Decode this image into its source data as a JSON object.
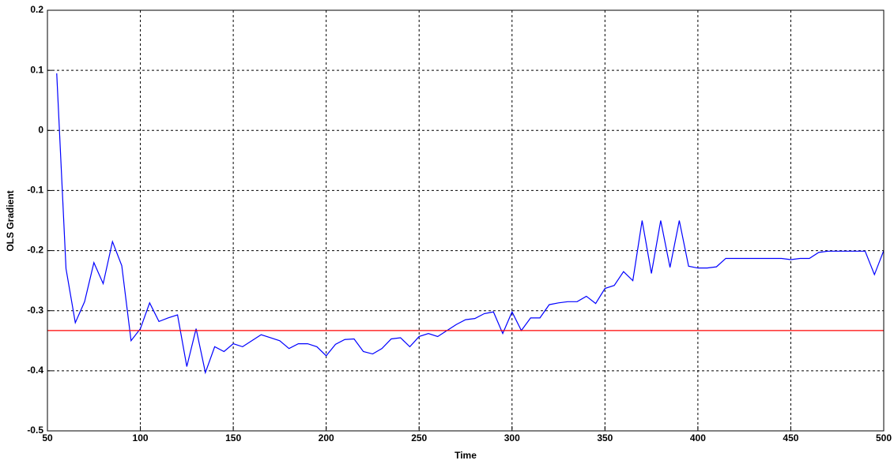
{
  "chart_data": {
    "type": "line",
    "xlabel": "Time",
    "ylabel": "OLS Gradient",
    "xlim": [
      50,
      500
    ],
    "ylim": [
      -0.5,
      0.2
    ],
    "xticks": [
      50,
      100,
      150,
      200,
      250,
      300,
      350,
      400,
      450,
      500
    ],
    "yticks": [
      -0.5,
      -0.4,
      -0.3,
      -0.2,
      -0.1,
      0,
      0.1,
      0.2
    ],
    "grid": true,
    "series": [
      {
        "color": "#0000ff",
        "x": [
          55,
          60,
          65,
          70,
          75,
          80,
          85,
          90,
          95,
          100,
          105,
          110,
          115,
          120,
          125,
          130,
          135,
          140,
          145,
          150,
          155,
          160,
          165,
          170,
          175,
          180,
          185,
          190,
          195,
          200,
          205,
          210,
          215,
          220,
          225,
          230,
          235,
          240,
          245,
          250,
          255,
          260,
          265,
          270,
          275,
          280,
          285,
          290,
          295,
          300,
          305,
          310,
          315,
          320,
          325,
          330,
          335,
          340,
          345,
          350,
          355,
          360,
          365,
          370,
          375,
          380,
          385,
          390,
          395,
          400,
          405,
          410,
          415,
          420,
          425,
          430,
          435,
          440,
          445,
          450,
          455,
          460,
          465,
          470,
          475,
          480,
          485,
          490,
          495,
          500
        ],
        "values": [
          0.095,
          -0.23,
          -0.32,
          -0.285,
          -0.22,
          -0.255,
          -0.185,
          -0.225,
          -0.35,
          -0.33,
          -0.287,
          -0.318,
          -0.312,
          -0.307,
          -0.393,
          -0.33,
          -0.403,
          -0.36,
          -0.368,
          -0.355,
          -0.36,
          -0.35,
          -0.34,
          -0.345,
          -0.35,
          -0.363,
          -0.355,
          -0.355,
          -0.36,
          -0.375,
          -0.356,
          -0.348,
          -0.347,
          -0.368,
          -0.372,
          -0.363,
          -0.347,
          -0.345,
          -0.36,
          -0.343,
          -0.338,
          -0.343,
          -0.333,
          -0.323,
          -0.315,
          -0.313,
          -0.305,
          -0.302,
          -0.338,
          -0.302,
          -0.333,
          -0.312,
          -0.312,
          -0.29,
          -0.287,
          -0.285,
          -0.285,
          -0.276,
          -0.288,
          -0.263,
          -0.258,
          -0.235,
          -0.25,
          -0.15,
          -0.238,
          -0.15,
          -0.228,
          -0.15,
          -0.226,
          -0.229,
          -0.229,
          -0.227,
          -0.213,
          -0.213,
          -0.213,
          -0.213,
          -0.213,
          -0.213,
          -0.213,
          -0.215,
          -0.213,
          -0.213,
          -0.203,
          -0.201,
          -0.201,
          -0.201,
          -0.201,
          -0.201,
          -0.24,
          -0.2
        ]
      },
      {
        "color": "#ff0000",
        "x": [
          50,
          500
        ],
        "values": [
          -0.333,
          -0.333
        ]
      }
    ]
  }
}
